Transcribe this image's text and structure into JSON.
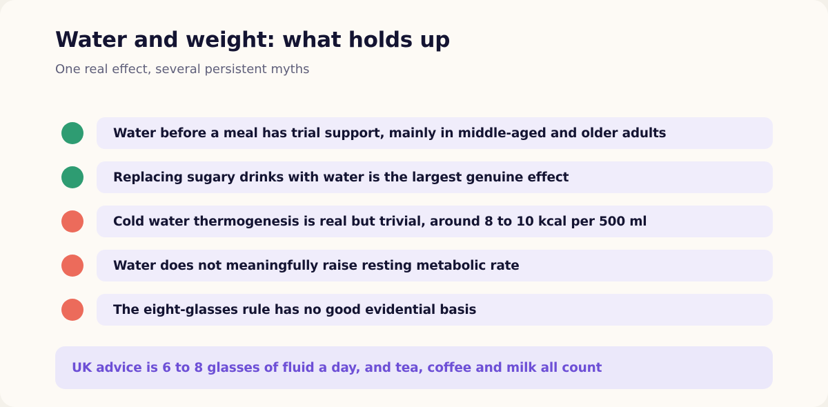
{
  "header": {
    "title": "Water and weight: what holds up",
    "subtitle": "One real effect, several persistent myths"
  },
  "colors": {
    "supported": "#2e9c72",
    "myth": "#ec6b5b",
    "note_text": "#6d4fd6"
  },
  "rows": [
    {
      "status": "supported",
      "text": "Water before a meal has trial support, mainly in middle-aged and older adults"
    },
    {
      "status": "supported",
      "text": "Replacing sugary drinks with water is the largest genuine effect"
    },
    {
      "status": "myth",
      "text": "Cold water thermogenesis is real but trivial, around 8 to 10 kcal per 500 ml"
    },
    {
      "status": "myth",
      "text": "Water does not meaningfully raise resting metabolic rate"
    },
    {
      "status": "myth",
      "text": "The eight-glasses rule has no good evidential basis"
    }
  ],
  "note": {
    "text": "UK advice is 6 to 8 glasses of fluid a day, and tea, coffee and milk all count"
  }
}
